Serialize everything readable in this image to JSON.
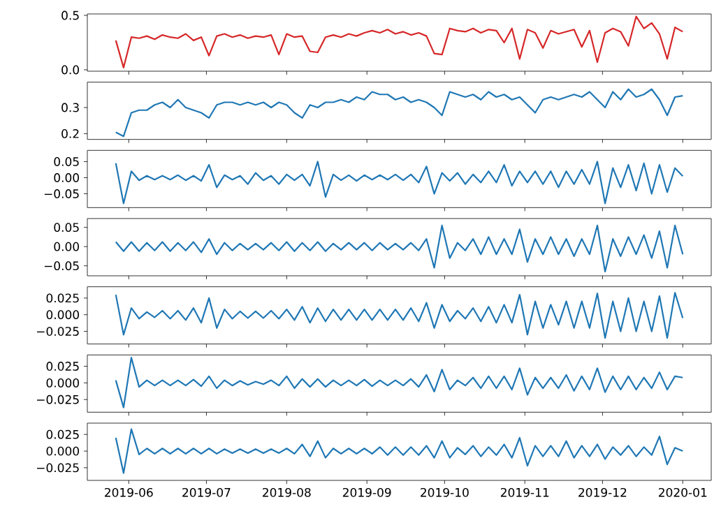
{
  "chart_data": [
    {
      "type": "line",
      "tick_labels": "y",
      "xlim": [
        "2019-05-16",
        "2020-01-12"
      ],
      "ylim": [
        -0.013,
        0.513
      ],
      "xticks": [
        {
          "value": "2019-06-01",
          "label": null
        },
        {
          "value": "2019-07-01",
          "label": null
        },
        {
          "value": "2019-08-01",
          "label": null
        },
        {
          "value": "2019-09-01",
          "label": null
        },
        {
          "value": "2019-10-01",
          "label": null
        },
        {
          "value": "2019-11-01",
          "label": null
        },
        {
          "value": "2019-12-01",
          "label": null
        },
        {
          "value": "2020-01-01",
          "label": null
        }
      ],
      "yticks": [
        {
          "value": 0,
          "label": "0.0"
        },
        {
          "value": 0.5,
          "label": "0.5"
        }
      ],
      "x": [
        "2019-05-27",
        "2019-05-30",
        "2019-06-02",
        "2019-06-05",
        "2019-06-08",
        "2019-06-11",
        "2019-06-14",
        "2019-06-17",
        "2019-06-20",
        "2019-06-23",
        "2019-06-26",
        "2019-06-29",
        "2019-07-02",
        "2019-07-05",
        "2019-07-08",
        "2019-07-11",
        "2019-07-14",
        "2019-07-17",
        "2019-07-20",
        "2019-07-23",
        "2019-07-26",
        "2019-07-29",
        "2019-08-01",
        "2019-08-04",
        "2019-08-07",
        "2019-08-10",
        "2019-08-13",
        "2019-08-16",
        "2019-08-19",
        "2019-08-22",
        "2019-08-25",
        "2019-08-28",
        "2019-08-31",
        "2019-09-03",
        "2019-09-06",
        "2019-09-09",
        "2019-09-12",
        "2019-09-15",
        "2019-09-18",
        "2019-09-21",
        "2019-09-24",
        "2019-09-27",
        "2019-09-30",
        "2019-10-03",
        "2019-10-06",
        "2019-10-09",
        "2019-10-12",
        "2019-10-15",
        "2019-10-18",
        "2019-10-21",
        "2019-10-24",
        "2019-10-27",
        "2019-10-30",
        "2019-11-02",
        "2019-11-05",
        "2019-11-08",
        "2019-11-11",
        "2019-11-14",
        "2019-11-17",
        "2019-11-20",
        "2019-11-23",
        "2019-11-26",
        "2019-11-29",
        "2019-12-02",
        "2019-12-05",
        "2019-12-08",
        "2019-12-11",
        "2019-12-14",
        "2019-12-17",
        "2019-12-20",
        "2019-12-23",
        "2019-12-26",
        "2019-12-29",
        "2020-01-01"
      ],
      "series": [
        {
          "color": "#d62728",
          "values": [
            0.27,
            0.02,
            0.3,
            0.29,
            0.31,
            0.28,
            0.32,
            0.3,
            0.29,
            0.33,
            0.27,
            0.3,
            0.13,
            0.31,
            0.33,
            0.3,
            0.32,
            0.29,
            0.31,
            0.3,
            0.32,
            0.14,
            0.33,
            0.3,
            0.31,
            0.17,
            0.16,
            0.3,
            0.32,
            0.3,
            0.33,
            0.31,
            0.34,
            0.36,
            0.34,
            0.37,
            0.33,
            0.35,
            0.32,
            0.34,
            0.31,
            0.15,
            0.14,
            0.38,
            0.36,
            0.35,
            0.38,
            0.34,
            0.37,
            0.36,
            0.25,
            0.38,
            0.1,
            0.37,
            0.34,
            0.2,
            0.36,
            0.33,
            0.35,
            0.37,
            0.21,
            0.36,
            0.07,
            0.34,
            0.38,
            0.35,
            0.22,
            0.49,
            0.38,
            0.43,
            0.33,
            0.1,
            0.39,
            0.35
          ]
        }
      ]
    },
    {
      "type": "line",
      "tick_labels": "y",
      "xlim": [
        "2019-05-16",
        "2020-01-12"
      ],
      "ylim": [
        0.178,
        0.397
      ],
      "xticks": [
        {
          "value": "2019-06-01",
          "label": null
        },
        {
          "value": "2019-07-01",
          "label": null
        },
        {
          "value": "2019-08-01",
          "label": null
        },
        {
          "value": "2019-09-01",
          "label": null
        },
        {
          "value": "2019-10-01",
          "label": null
        },
        {
          "value": "2019-11-01",
          "label": null
        },
        {
          "value": "2019-12-01",
          "label": null
        },
        {
          "value": "2020-01-01",
          "label": null
        }
      ],
      "yticks": [
        0.2,
        0.3
      ],
      "x": [
        "2019-05-27",
        "2019-05-30",
        "2019-06-02",
        "2019-06-05",
        "2019-06-08",
        "2019-06-11",
        "2019-06-14",
        "2019-06-17",
        "2019-06-20",
        "2019-06-23",
        "2019-06-26",
        "2019-06-29",
        "2019-07-02",
        "2019-07-05",
        "2019-07-08",
        "2019-07-11",
        "2019-07-14",
        "2019-07-17",
        "2019-07-20",
        "2019-07-23",
        "2019-07-26",
        "2019-07-29",
        "2019-08-01",
        "2019-08-04",
        "2019-08-07",
        "2019-08-10",
        "2019-08-13",
        "2019-08-16",
        "2019-08-19",
        "2019-08-22",
        "2019-08-25",
        "2019-08-28",
        "2019-08-31",
        "2019-09-03",
        "2019-09-06",
        "2019-09-09",
        "2019-09-12",
        "2019-09-15",
        "2019-09-18",
        "2019-09-21",
        "2019-09-24",
        "2019-09-27",
        "2019-09-30",
        "2019-10-03",
        "2019-10-06",
        "2019-10-09",
        "2019-10-12",
        "2019-10-15",
        "2019-10-18",
        "2019-10-21",
        "2019-10-24",
        "2019-10-27",
        "2019-10-30",
        "2019-11-02",
        "2019-11-05",
        "2019-11-08",
        "2019-11-11",
        "2019-11-14",
        "2019-11-17",
        "2019-11-20",
        "2019-11-23",
        "2019-11-26",
        "2019-11-29",
        "2019-12-02",
        "2019-12-05",
        "2019-12-08",
        "2019-12-11",
        "2019-12-14",
        "2019-12-17",
        "2019-12-20",
        "2019-12-23",
        "2019-12-26",
        "2019-12-29",
        "2020-01-01"
      ],
      "series": [
        {
          "color": "#1f77b4",
          "values": [
            0.205,
            0.19,
            0.28,
            0.29,
            0.29,
            0.31,
            0.32,
            0.3,
            0.33,
            0.3,
            0.29,
            0.28,
            0.26,
            0.31,
            0.32,
            0.32,
            0.31,
            0.32,
            0.31,
            0.32,
            0.3,
            0.32,
            0.31,
            0.28,
            0.26,
            0.31,
            0.3,
            0.32,
            0.32,
            0.33,
            0.32,
            0.34,
            0.33,
            0.36,
            0.35,
            0.35,
            0.33,
            0.34,
            0.32,
            0.33,
            0.32,
            0.3,
            0.27,
            0.36,
            0.35,
            0.34,
            0.35,
            0.33,
            0.36,
            0.34,
            0.35,
            0.33,
            0.34,
            0.31,
            0.28,
            0.33,
            0.34,
            0.33,
            0.34,
            0.35,
            0.34,
            0.36,
            0.33,
            0.3,
            0.36,
            0.33,
            0.37,
            0.34,
            0.35,
            0.37,
            0.33,
            0.27,
            0.34,
            0.345
          ]
        }
      ]
    },
    {
      "type": "line",
      "tick_labels": "y",
      "xlim": [
        "2019-05-16",
        "2020-01-12"
      ],
      "ylim": [
        -0.093,
        0.085
      ],
      "xticks": [
        {
          "value": "2019-06-01",
          "label": null
        },
        {
          "value": "2019-07-01",
          "label": null
        },
        {
          "value": "2019-08-01",
          "label": null
        },
        {
          "value": "2019-09-01",
          "label": null
        },
        {
          "value": "2019-10-01",
          "label": null
        },
        {
          "value": "2019-11-01",
          "label": null
        },
        {
          "value": "2019-12-01",
          "label": null
        },
        {
          "value": "2020-01-01",
          "label": null
        }
      ],
      "yticks": [
        {
          "value": -0.05,
          "label": "−0.05"
        },
        {
          "value": 0,
          "label": "0.00"
        },
        {
          "value": 0.05,
          "label": "0.05"
        }
      ],
      "x": [
        "2019-05-27",
        "2019-05-30",
        "2019-06-02",
        "2019-06-05",
        "2019-06-08",
        "2019-06-11",
        "2019-06-14",
        "2019-06-17",
        "2019-06-20",
        "2019-06-23",
        "2019-06-26",
        "2019-06-29",
        "2019-07-02",
        "2019-07-05",
        "2019-07-08",
        "2019-07-11",
        "2019-07-14",
        "2019-07-17",
        "2019-07-20",
        "2019-07-23",
        "2019-07-26",
        "2019-07-29",
        "2019-08-01",
        "2019-08-04",
        "2019-08-07",
        "2019-08-10",
        "2019-08-13",
        "2019-08-16",
        "2019-08-19",
        "2019-08-22",
        "2019-08-25",
        "2019-08-28",
        "2019-08-31",
        "2019-09-03",
        "2019-09-06",
        "2019-09-09",
        "2019-09-12",
        "2019-09-15",
        "2019-09-18",
        "2019-09-21",
        "2019-09-24",
        "2019-09-27",
        "2019-09-30",
        "2019-10-03",
        "2019-10-06",
        "2019-10-09",
        "2019-10-12",
        "2019-10-15",
        "2019-10-18",
        "2019-10-21",
        "2019-10-24",
        "2019-10-27",
        "2019-10-30",
        "2019-11-02",
        "2019-11-05",
        "2019-11-08",
        "2019-11-11",
        "2019-11-14",
        "2019-11-17",
        "2019-11-20",
        "2019-11-23",
        "2019-11-26",
        "2019-11-29",
        "2019-12-02",
        "2019-12-05",
        "2019-12-08",
        "2019-12-11",
        "2019-12-14",
        "2019-12-17",
        "2019-12-20",
        "2019-12-23",
        "2019-12-26",
        "2019-12-29",
        "2020-01-01"
      ],
      "series": [
        {
          "color": "#1f77b4",
          "values": [
            0.045,
            -0.08,
            0.02,
            -0.008,
            0.006,
            -0.006,
            0.006,
            -0.006,
            0.008,
            -0.008,
            0.006,
            -0.01,
            0.04,
            -0.03,
            0.008,
            -0.006,
            0.006,
            -0.02,
            0.015,
            -0.008,
            0.006,
            -0.02,
            0.01,
            -0.008,
            0.01,
            -0.025,
            0.05,
            -0.06,
            0.01,
            -0.008,
            0.008,
            -0.01,
            0.008,
            -0.006,
            0.008,
            -0.006,
            0.01,
            -0.008,
            0.01,
            -0.015,
            0.035,
            -0.05,
            0.015,
            -0.01,
            0.015,
            -0.02,
            0.01,
            -0.015,
            0.02,
            -0.015,
            0.04,
            -0.025,
            0.02,
            -0.015,
            0.02,
            -0.02,
            0.02,
            -0.03,
            0.02,
            -0.02,
            0.025,
            -0.02,
            0.05,
            -0.08,
            0.03,
            -0.03,
            0.04,
            -0.04,
            0.045,
            -0.05,
            0.04,
            -0.045,
            0.03,
            0.005
          ]
        }
      ]
    },
    {
      "type": "line",
      "tick_labels": "y",
      "xlim": [
        "2019-05-16",
        "2020-01-12"
      ],
      "ylim": [
        -0.076,
        0.073
      ],
      "xticks": [
        {
          "value": "2019-06-01",
          "label": null
        },
        {
          "value": "2019-07-01",
          "label": null
        },
        {
          "value": "2019-08-01",
          "label": null
        },
        {
          "value": "2019-09-01",
          "label": null
        },
        {
          "value": "2019-10-01",
          "label": null
        },
        {
          "value": "2019-11-01",
          "label": null
        },
        {
          "value": "2019-12-01",
          "label": null
        },
        {
          "value": "2020-01-01",
          "label": null
        }
      ],
      "yticks": [
        {
          "value": -0.05,
          "label": "−0.05"
        },
        {
          "value": 0,
          "label": "0.00"
        },
        {
          "value": 0.05,
          "label": "0.05"
        }
      ],
      "x": [
        "2019-05-27",
        "2019-05-30",
        "2019-06-02",
        "2019-06-05",
        "2019-06-08",
        "2019-06-11",
        "2019-06-14",
        "2019-06-17",
        "2019-06-20",
        "2019-06-23",
        "2019-06-26",
        "2019-06-29",
        "2019-07-02",
        "2019-07-05",
        "2019-07-08",
        "2019-07-11",
        "2019-07-14",
        "2019-07-17",
        "2019-07-20",
        "2019-07-23",
        "2019-07-26",
        "2019-07-29",
        "2019-08-01",
        "2019-08-04",
        "2019-08-07",
        "2019-08-10",
        "2019-08-13",
        "2019-08-16",
        "2019-08-19",
        "2019-08-22",
        "2019-08-25",
        "2019-08-28",
        "2019-08-31",
        "2019-09-03",
        "2019-09-06",
        "2019-09-09",
        "2019-09-12",
        "2019-09-15",
        "2019-09-18",
        "2019-09-21",
        "2019-09-24",
        "2019-09-27",
        "2019-09-30",
        "2019-10-03",
        "2019-10-06",
        "2019-10-09",
        "2019-10-12",
        "2019-10-15",
        "2019-10-18",
        "2019-10-21",
        "2019-10-24",
        "2019-10-27",
        "2019-10-30",
        "2019-11-02",
        "2019-11-05",
        "2019-11-08",
        "2019-11-11",
        "2019-11-14",
        "2019-11-17",
        "2019-11-20",
        "2019-11-23",
        "2019-11-26",
        "2019-11-29",
        "2019-12-02",
        "2019-12-05",
        "2019-12-08",
        "2019-12-11",
        "2019-12-14",
        "2019-12-17",
        "2019-12-20",
        "2019-12-23",
        "2019-12-26",
        "2019-12-29",
        "2020-01-01"
      ],
      "series": [
        {
          "color": "#1f77b4",
          "values": [
            0.012,
            -0.012,
            0.012,
            -0.012,
            0.01,
            -0.01,
            0.012,
            -0.012,
            0.01,
            -0.01,
            0.012,
            -0.015,
            0.02,
            -0.02,
            0.01,
            -0.01,
            0.008,
            -0.008,
            0.008,
            -0.008,
            0.01,
            -0.01,
            0.012,
            -0.012,
            0.01,
            -0.01,
            0.012,
            -0.012,
            0.008,
            -0.008,
            0.01,
            -0.008,
            0.01,
            -0.01,
            0.01,
            -0.008,
            0.008,
            -0.008,
            0.01,
            -0.01,
            0.02,
            -0.055,
            0.055,
            -0.03,
            0.01,
            -0.01,
            0.02,
            -0.02,
            0.025,
            -0.02,
            0.02,
            -0.02,
            0.045,
            -0.04,
            0.02,
            -0.02,
            0.025,
            -0.02,
            0.02,
            -0.025,
            0.02,
            -0.02,
            0.055,
            -0.065,
            0.02,
            -0.025,
            0.025,
            -0.02,
            0.03,
            -0.03,
            0.04,
            -0.055,
            0.055,
            -0.02
          ]
        }
      ]
    },
    {
      "type": "line",
      "tick_labels": "y",
      "xlim": [
        "2019-05-16",
        "2020-01-12"
      ],
      "ylim": [
        -0.044,
        0.042
      ],
      "xticks": [
        {
          "value": "2019-06-01",
          "label": null
        },
        {
          "value": "2019-07-01",
          "label": null
        },
        {
          "value": "2019-08-01",
          "label": null
        },
        {
          "value": "2019-09-01",
          "label": null
        },
        {
          "value": "2019-10-01",
          "label": null
        },
        {
          "value": "2019-11-01",
          "label": null
        },
        {
          "value": "2019-12-01",
          "label": null
        },
        {
          "value": "2020-01-01",
          "label": null
        }
      ],
      "yticks": [
        {
          "value": -0.025,
          "label": "−0.025"
        },
        {
          "value": 0,
          "label": "0.000"
        },
        {
          "value": 0.025,
          "label": "0.025"
        }
      ],
      "x": [
        "2019-05-27",
        "2019-05-30",
        "2019-06-02",
        "2019-06-05",
        "2019-06-08",
        "2019-06-11",
        "2019-06-14",
        "2019-06-17",
        "2019-06-20",
        "2019-06-23",
        "2019-06-26",
        "2019-06-29",
        "2019-07-02",
        "2019-07-05",
        "2019-07-08",
        "2019-07-11",
        "2019-07-14",
        "2019-07-17",
        "2019-07-20",
        "2019-07-23",
        "2019-07-26",
        "2019-07-29",
        "2019-08-01",
        "2019-08-04",
        "2019-08-07",
        "2019-08-10",
        "2019-08-13",
        "2019-08-16",
        "2019-08-19",
        "2019-08-22",
        "2019-08-25",
        "2019-08-28",
        "2019-08-31",
        "2019-09-03",
        "2019-09-06",
        "2019-09-09",
        "2019-09-12",
        "2019-09-15",
        "2019-09-18",
        "2019-09-21",
        "2019-09-24",
        "2019-09-27",
        "2019-09-30",
        "2019-10-03",
        "2019-10-06",
        "2019-10-09",
        "2019-10-12",
        "2019-10-15",
        "2019-10-18",
        "2019-10-21",
        "2019-10-24",
        "2019-10-27",
        "2019-10-30",
        "2019-11-02",
        "2019-11-05",
        "2019-11-08",
        "2019-11-11",
        "2019-11-14",
        "2019-11-17",
        "2019-11-20",
        "2019-11-23",
        "2019-11-26",
        "2019-11-29",
        "2019-12-02",
        "2019-12-05",
        "2019-12-08",
        "2019-12-11",
        "2019-12-14",
        "2019-12-17",
        "2019-12-20",
        "2019-12-23",
        "2019-12-26",
        "2019-12-29",
        "2020-01-01"
      ],
      "series": [
        {
          "color": "#1f77b4",
          "values": [
            0.03,
            -0.03,
            0.01,
            -0.006,
            0.004,
            -0.004,
            0.006,
            -0.006,
            0.006,
            -0.008,
            0.01,
            -0.012,
            0.025,
            -0.02,
            0.008,
            -0.006,
            0.005,
            -0.005,
            0.005,
            -0.005,
            0.006,
            -0.006,
            0.008,
            -0.008,
            0.012,
            -0.012,
            0.01,
            -0.01,
            0.008,
            -0.008,
            0.008,
            -0.008,
            0.008,
            -0.008,
            0.008,
            -0.008,
            0.008,
            -0.008,
            0.01,
            -0.01,
            0.018,
            -0.02,
            0.015,
            -0.01,
            0.006,
            -0.006,
            0.01,
            -0.01,
            0.012,
            -0.012,
            0.015,
            -0.012,
            0.03,
            -0.03,
            0.02,
            -0.02,
            0.015,
            -0.015,
            0.02,
            -0.02,
            0.02,
            -0.02,
            0.032,
            -0.035,
            0.02,
            -0.025,
            0.025,
            -0.025,
            0.02,
            -0.025,
            0.028,
            -0.035,
            0.033,
            -0.005
          ]
        }
      ]
    },
    {
      "type": "line",
      "tick_labels": "y",
      "xlim": [
        "2019-05-16",
        "2020-01-12"
      ],
      "ylim": [
        -0.044,
        0.042
      ],
      "xticks": [
        {
          "value": "2019-06-01",
          "label": null
        },
        {
          "value": "2019-07-01",
          "label": null
        },
        {
          "value": "2019-08-01",
          "label": null
        },
        {
          "value": "2019-09-01",
          "label": null
        },
        {
          "value": "2019-10-01",
          "label": null
        },
        {
          "value": "2019-11-01",
          "label": null
        },
        {
          "value": "2019-12-01",
          "label": null
        },
        {
          "value": "2020-01-01",
          "label": null
        }
      ],
      "yticks": [
        {
          "value": -0.025,
          "label": "−0.025"
        },
        {
          "value": 0,
          "label": "0.000"
        },
        {
          "value": 0.025,
          "label": "0.025"
        }
      ],
      "x": [
        "2019-05-27",
        "2019-05-30",
        "2019-06-02",
        "2019-06-05",
        "2019-06-08",
        "2019-06-11",
        "2019-06-14",
        "2019-06-17",
        "2019-06-20",
        "2019-06-23",
        "2019-06-26",
        "2019-06-29",
        "2019-07-02",
        "2019-07-05",
        "2019-07-08",
        "2019-07-11",
        "2019-07-14",
        "2019-07-17",
        "2019-07-20",
        "2019-07-23",
        "2019-07-26",
        "2019-07-29",
        "2019-08-01",
        "2019-08-04",
        "2019-08-07",
        "2019-08-10",
        "2019-08-13",
        "2019-08-16",
        "2019-08-19",
        "2019-08-22",
        "2019-08-25",
        "2019-08-28",
        "2019-08-31",
        "2019-09-03",
        "2019-09-06",
        "2019-09-09",
        "2019-09-12",
        "2019-09-15",
        "2019-09-18",
        "2019-09-21",
        "2019-09-24",
        "2019-09-27",
        "2019-09-30",
        "2019-10-03",
        "2019-10-06",
        "2019-10-09",
        "2019-10-12",
        "2019-10-15",
        "2019-10-18",
        "2019-10-21",
        "2019-10-24",
        "2019-10-27",
        "2019-10-30",
        "2019-11-02",
        "2019-11-05",
        "2019-11-08",
        "2019-11-11",
        "2019-11-14",
        "2019-11-17",
        "2019-11-20",
        "2019-11-23",
        "2019-11-26",
        "2019-11-29",
        "2019-12-02",
        "2019-12-05",
        "2019-12-08",
        "2019-12-11",
        "2019-12-14",
        "2019-12-17",
        "2019-12-20",
        "2019-12-23",
        "2019-12-26",
        "2019-12-29",
        "2020-01-01"
      ],
      "series": [
        {
          "color": "#1f77b4",
          "values": [
            0.004,
            -0.037,
            0.038,
            -0.006,
            0.004,
            -0.004,
            0.004,
            -0.004,
            0.004,
            -0.004,
            0.005,
            -0.005,
            0.01,
            -0.008,
            0.004,
            -0.004,
            0.003,
            -0.003,
            0.002,
            -0.002,
            0.004,
            -0.004,
            0.01,
            -0.008,
            0.006,
            -0.006,
            0.006,
            -0.006,
            0.004,
            -0.004,
            0.004,
            -0.004,
            0.005,
            -0.005,
            0.004,
            -0.004,
            0.004,
            -0.004,
            0.006,
            -0.006,
            0.012,
            -0.013,
            0.02,
            -0.01,
            0.004,
            -0.004,
            0.008,
            -0.008,
            0.01,
            -0.008,
            0.01,
            -0.01,
            0.022,
            -0.018,
            0.008,
            -0.008,
            0.008,
            -0.008,
            0.012,
            -0.012,
            0.01,
            -0.01,
            0.022,
            -0.014,
            0.01,
            -0.01,
            0.01,
            -0.01,
            0.008,
            -0.008,
            0.016,
            -0.01,
            0.01,
            0.008
          ]
        }
      ]
    },
    {
      "type": "line",
      "xlim": [
        "2019-05-16",
        "2020-01-12"
      ],
      "ylim": [
        -0.044,
        0.042
      ],
      "xticks": [
        {
          "value": "2019-06-01",
          "label": "2019-06"
        },
        {
          "value": "2019-07-01",
          "label": "2019-07"
        },
        {
          "value": "2019-08-01",
          "label": "2019-08"
        },
        {
          "value": "2019-09-01",
          "label": "2019-09"
        },
        {
          "value": "2019-10-01",
          "label": "2019-10"
        },
        {
          "value": "2019-11-01",
          "label": "2019-11"
        },
        {
          "value": "2019-12-01",
          "label": "2019-12"
        },
        {
          "value": "2020-01-01",
          "label": "2020-01"
        }
      ],
      "yticks": [
        {
          "value": -0.025,
          "label": "−0.025"
        },
        {
          "value": 0,
          "label": "0.000"
        },
        {
          "value": 0.025,
          "label": "0.025"
        }
      ],
      "x": [
        "2019-05-27",
        "2019-05-30",
        "2019-06-02",
        "2019-06-05",
        "2019-06-08",
        "2019-06-11",
        "2019-06-14",
        "2019-06-17",
        "2019-06-20",
        "2019-06-23",
        "2019-06-26",
        "2019-06-29",
        "2019-07-02",
        "2019-07-05",
        "2019-07-08",
        "2019-07-11",
        "2019-07-14",
        "2019-07-17",
        "2019-07-20",
        "2019-07-23",
        "2019-07-26",
        "2019-07-29",
        "2019-08-01",
        "2019-08-04",
        "2019-08-07",
        "2019-08-10",
        "2019-08-13",
        "2019-08-16",
        "2019-08-19",
        "2019-08-22",
        "2019-08-25",
        "2019-08-28",
        "2019-08-31",
        "2019-09-03",
        "2019-09-06",
        "2019-09-09",
        "2019-09-12",
        "2019-09-15",
        "2019-09-18",
        "2019-09-21",
        "2019-09-24",
        "2019-09-27",
        "2019-09-30",
        "2019-10-03",
        "2019-10-06",
        "2019-10-09",
        "2019-10-12",
        "2019-10-15",
        "2019-10-18",
        "2019-10-21",
        "2019-10-24",
        "2019-10-27",
        "2019-10-30",
        "2019-11-02",
        "2019-11-05",
        "2019-11-08",
        "2019-11-11",
        "2019-11-14",
        "2019-11-17",
        "2019-11-20",
        "2019-11-23",
        "2019-11-26",
        "2019-11-29",
        "2019-12-02",
        "2019-12-05",
        "2019-12-08",
        "2019-12-11",
        "2019-12-14",
        "2019-12-17",
        "2019-12-20",
        "2019-12-23",
        "2019-12-26",
        "2019-12-29",
        "2020-01-01"
      ],
      "series": [
        {
          "color": "#1f77b4",
          "values": [
            0.02,
            -0.033,
            0.033,
            -0.005,
            0.004,
            -0.004,
            0.004,
            -0.004,
            0.004,
            -0.004,
            0.004,
            -0.004,
            0.004,
            -0.004,
            0.003,
            -0.003,
            0.003,
            -0.003,
            0.003,
            -0.003,
            0.003,
            -0.003,
            0.004,
            -0.004,
            0.01,
            -0.008,
            0.015,
            -0.01,
            0.004,
            -0.004,
            0.004,
            -0.004,
            0.004,
            -0.004,
            0.006,
            -0.006,
            0.006,
            -0.006,
            0.006,
            -0.006,
            0.008,
            -0.01,
            0.015,
            -0.01,
            0.005,
            -0.005,
            0.008,
            -0.008,
            0.006,
            -0.006,
            0.01,
            -0.01,
            0.02,
            -0.022,
            0.008,
            -0.008,
            0.008,
            -0.008,
            0.015,
            -0.01,
            0.008,
            -0.008,
            0.01,
            -0.012,
            0.006,
            -0.006,
            0.008,
            -0.008,
            0.006,
            -0.006,
            0.022,
            -0.02,
            0.005,
            0.0
          ]
        }
      ]
    }
  ]
}
